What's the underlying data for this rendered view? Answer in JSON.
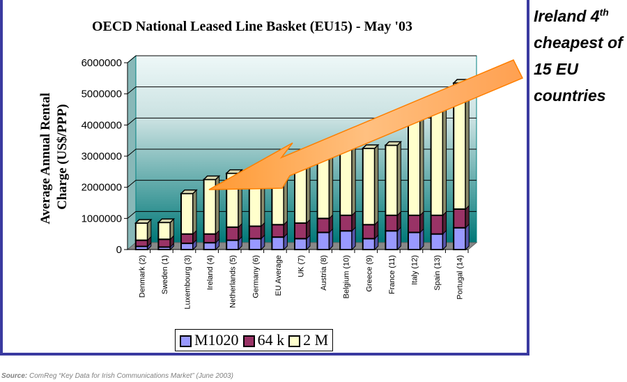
{
  "chart_data": {
    "type": "bar",
    "stacked": true,
    "three_d": true,
    "title": "OECD National Leased Line Basket (EU15) - May '03",
    "ylabel": "Average Annual Rental Charge (US$/PPP)",
    "xlabel": "",
    "ylim": [
      0,
      6000000
    ],
    "yticks": [
      "0",
      "1000000",
      "2000000",
      "3000000",
      "4000000",
      "5000000",
      "6000000"
    ],
    "grid": true,
    "legend_position": "bottom",
    "categories": [
      "Denmark (2)",
      "Sweden (1)",
      "Luxembourg (3)",
      "Ireland (4)",
      "Netherlands (5)",
      "Germany (6)",
      "EU Average",
      "UK (7)",
      "Austria (8)",
      "Belgium (10)",
      "Greece (9)",
      "France (11)",
      "Italy (12)",
      "Spain (13)",
      "Portugal (14)"
    ],
    "series": [
      {
        "name": "M1020",
        "color": "#9999ff",
        "values": [
          100000,
          80000,
          200000,
          220000,
          300000,
          350000,
          400000,
          350000,
          550000,
          600000,
          350000,
          600000,
          550000,
          500000,
          700000
        ]
      },
      {
        "name": "64 k",
        "color": "#993366",
        "values": [
          200000,
          250000,
          300000,
          280000,
          420000,
          400000,
          400000,
          500000,
          450000,
          500000,
          450000,
          500000,
          550000,
          600000,
          600000
        ]
      },
      {
        "name": "2 M",
        "color": "#ffffcc",
        "values": [
          550000,
          540000,
          1300000,
          1750000,
          1730000,
          1750000,
          1900000,
          2050000,
          2000000,
          2100000,
          2450000,
          2250000,
          3200000,
          3500000,
          4050000
        ]
      }
    ]
  },
  "annotation": {
    "line1": "Ireland 4",
    "sup": "th",
    "line2": "cheapest of",
    "line3": "15 EU",
    "line4": "countries"
  },
  "source": {
    "label": "Source:",
    "text": " ComReg “Key Data for Irish Communications Market” (June 2003)"
  },
  "colors": {
    "frame": "#3a3aa0",
    "arrow": "#ff9933",
    "plot_top": "#e8f4f4",
    "plot_bottom": "#007c7c"
  }
}
